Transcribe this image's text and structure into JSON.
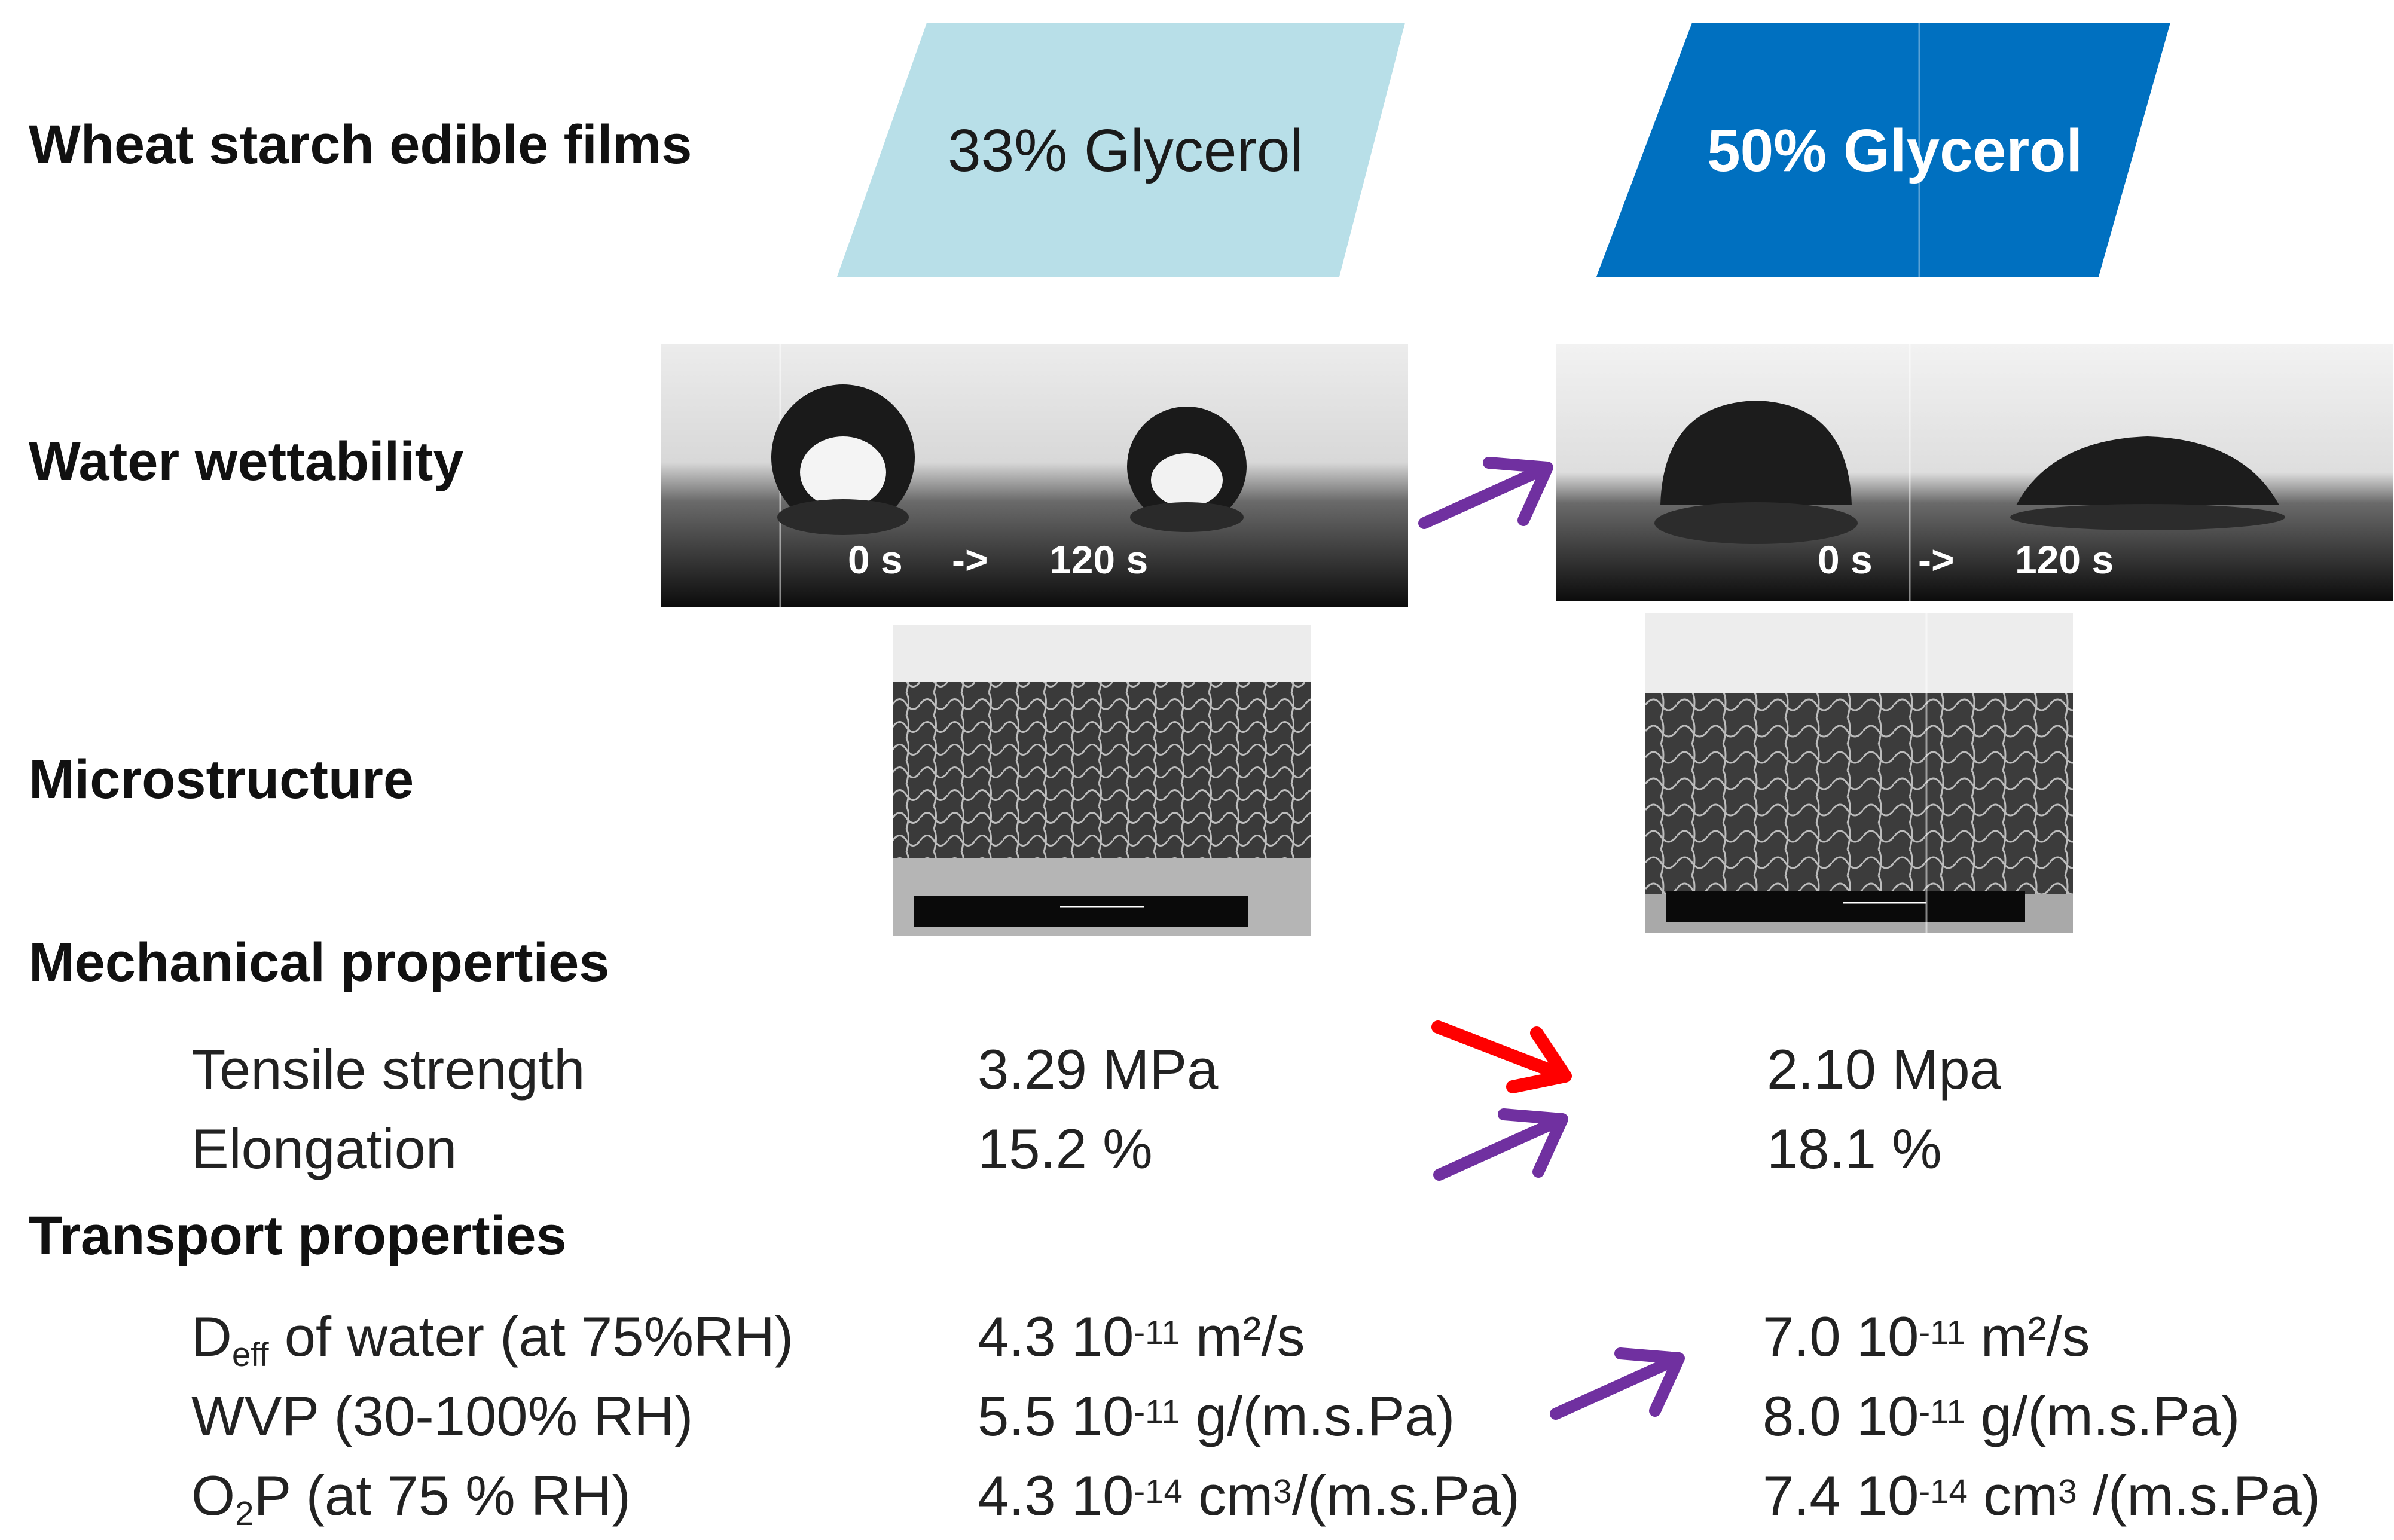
{
  "header": {
    "title": "Wheat starch edible films",
    "badge_left": "33% Glycerol",
    "badge_right": "50% Glycerol",
    "colors": {
      "badge_left": "#b8dfe8",
      "badge_right": "#0070c0",
      "arrow_increase": "#7030a0",
      "arrow_decrease": "#ff0000"
    }
  },
  "sections": {
    "wettability": "Water wettability",
    "microstructure": "Microstructure",
    "mechanical": "Mechanical properties",
    "transport": "Transport properties"
  },
  "wettability_images": {
    "left": {
      "t0": "0 s",
      "sep": "->",
      "t1": "120 s"
    },
    "right": {
      "t0": "0 s",
      "sep": "->",
      "t1": "120 s"
    }
  },
  "mechanical": {
    "tensile_label": "Tensile strength",
    "elongation_label": "Elongation",
    "tensile_33": "3.29  MPa",
    "elongation_33": "15.2    %",
    "tensile_50": "2.10 Mpa",
    "elongation_50": "18.1   %"
  },
  "transport": {
    "deff_label_main": "D",
    "deff_label_sub": "eff",
    "deff_label_rest": " of water (at 75%RH)",
    "wvp_label": "WVP  (30-100% RH)",
    "o2p_label_main": "O",
    "o2p_label_sub": "2",
    "o2p_label_rest": "P  (at 75 % RH)",
    "deff_33_num": "4.3  10",
    "deff_33_exp": "-11",
    "deff_33_unit": " m²/s",
    "wvp_33_num": "5.5  10",
    "wvp_33_exp": "-11",
    "wvp_33_unit": " g/(m.s.Pa)",
    "o2p_33_num": "4.3  10",
    "o2p_33_exp": "-14",
    "o2p_33_unit_a": " cm",
    "o2p_33_unit_exp": "3",
    "o2p_33_unit_b": "/(m.s.Pa)",
    "deff_50_num": "7.0  10",
    "deff_50_exp": "-11",
    "deff_50_unit": " m²/s",
    "wvp_50_num": "8.0  10",
    "wvp_50_exp": "-11",
    "wvp_50_unit": " g/(m.s.Pa)",
    "o2p_50_num": "7.4 10",
    "o2p_50_exp": "-14",
    "o2p_50_unit_a": " cm",
    "o2p_50_unit_exp": "3",
    "o2p_50_unit_b": " /(m.s.Pa)"
  }
}
